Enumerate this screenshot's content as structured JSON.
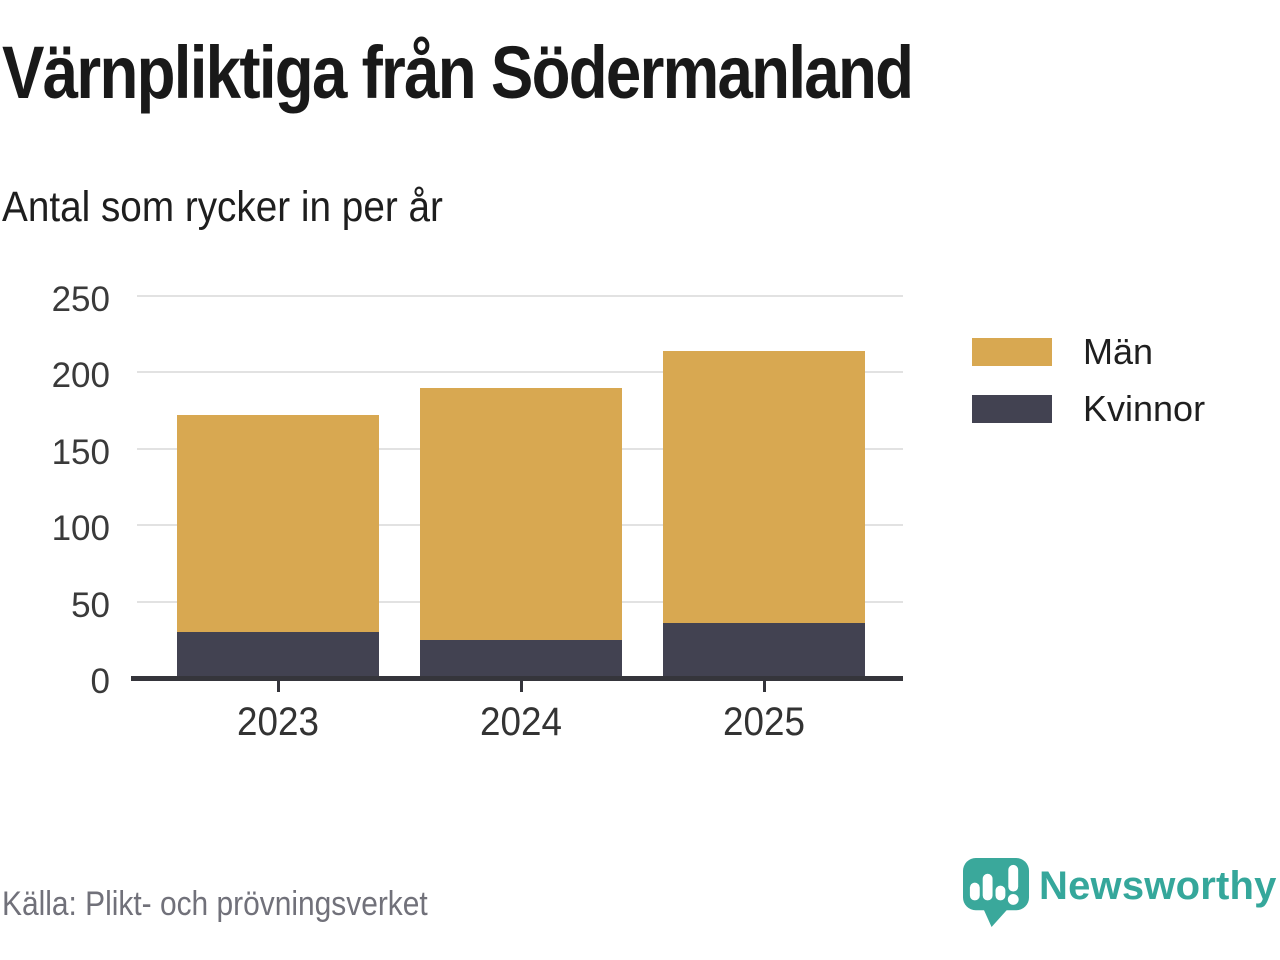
{
  "chart_data": {
    "type": "bar",
    "stacked": true,
    "title": "Värnpliktiga från Södermanland",
    "subtitle": "Antal som rycker in per år",
    "categories": [
      "2023",
      "2024",
      "2025"
    ],
    "series": [
      {
        "name": "Män",
        "color": "#d8a851",
        "values": [
          142,
          165,
          178
        ]
      },
      {
        "name": "Kvinnor",
        "color": "#424251",
        "values": [
          30,
          25,
          36
        ]
      }
    ],
    "stack_totals": [
      172,
      190,
      214
    ],
    "xlabel": "",
    "ylabel": "",
    "ylim": [
      0,
      250
    ],
    "y_ticks": [
      0,
      50,
      100,
      150,
      200,
      250
    ],
    "grid": true,
    "legend_position": "right"
  },
  "footer": {
    "source": "Källa: Plikt- och prövningsverket",
    "brand": "Newsworthy"
  },
  "colors": {
    "men": "#d8a851",
    "women": "#424251",
    "brand_teal": "#35a79b",
    "grid": "#e2e2e2",
    "axis": "#35353b",
    "title_text": "#191919",
    "muted_text": "#71717a"
  }
}
